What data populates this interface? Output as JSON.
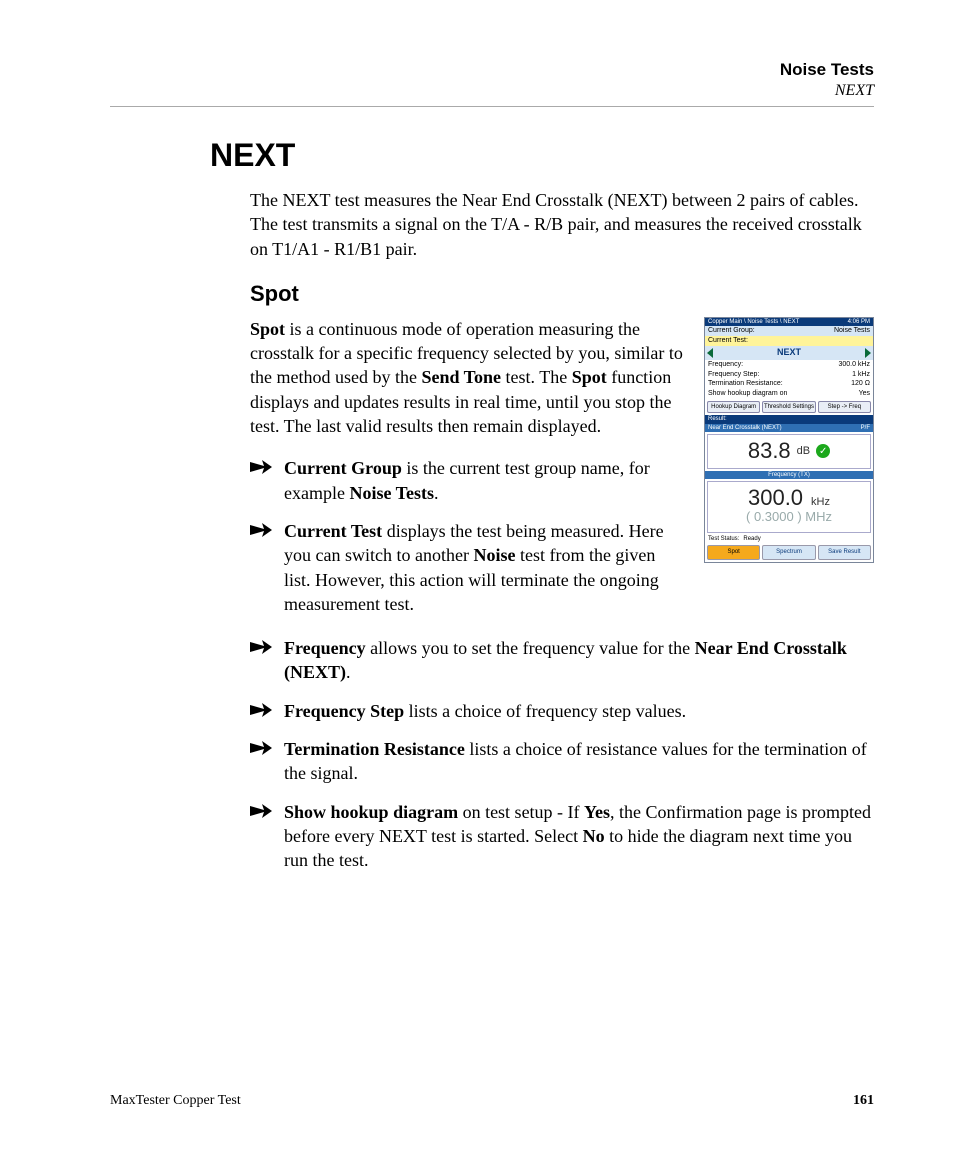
{
  "header": {
    "section": "Noise Tests",
    "subsection": "NEXT"
  },
  "h1": "NEXT",
  "intro": "The NEXT test measures the Near End Crosstalk (NEXT) between 2 pairs of cables. The test transmits a signal on the T/A - R/B pair, and measures the received crosstalk on T1/A1 - R1/B1 pair.",
  "h2": "Spot",
  "spot_para_html": "<span class='b'>Spot</span> is a continuous mode of operation measuring the crosstalk for a specific frequency selected by you, similar to the method used by the <span class='b'>Send Tone</span> test. The <span class='b'>Spot</span> function displays and updates results in real time, until you stop the test. The last valid results then remain displayed.",
  "bullets_html": [
    "<span class='b'>Current Group</span> is the current test group name, for example <span class='b'>Noise Tests</span>.",
    "<span class='b'>Current Test</span> displays the test being measured. Here you can switch to another <span class='b'>Noise</span> test from the given list. However, this action will terminate the ongoing measurement test.",
    "<span class='b'>Frequency</span> allows you to set the frequency value for the <span class='b'>Near End Crosstalk (NEXT)</span>.",
    "<span class='b'>Frequency Step</span> lists a choice of frequency step values.",
    "<span class='b'>Termination Resistance</span> lists a choice of resistance values for the termination of the signal.",
    "<span class='b'>Show hookup diagram</span> on test setup - If <span class='b'>Yes</span>, the Confirmation page is prompted before every NEXT test is started. Select <span class='b'>No</span> to hide the diagram next time you run the test."
  ],
  "device": {
    "breadcrumb": "Copper Main \\ Noise Tests \\ NEXT",
    "time": "4:06 PM",
    "current_group_label": "Current Group:",
    "current_group_value": "Noise Tests",
    "current_test_label": "Current Test:",
    "next_label": "NEXT",
    "params": [
      {
        "label": "Frequency:",
        "value": "300.0 kHz"
      },
      {
        "label": "Frequency Step:",
        "value": "1 kHz"
      },
      {
        "label": "Termination Resistance:",
        "value": "120 Ω"
      },
      {
        "label": "Show hookup diagram on",
        "value": "Yes"
      }
    ],
    "buttons": [
      "Hookup Diagram",
      "Threshold Settings",
      "Step -> Freq"
    ],
    "result_label": "Result:",
    "nec_label": "Near End Crosstalk (NEXT)",
    "pf_label": "P/F",
    "nec_value": "83.8",
    "nec_unit": "dB",
    "nec_pass": true,
    "freq_tx_label": "Frequency (TX)",
    "freq_value": "300.0",
    "freq_unit": "kHz",
    "mhz_line": "( 0.3000 ) MHz",
    "status_label": "Test Status:",
    "status_value": "Ready",
    "tabs": [
      "Spot",
      "Spectrum",
      "Save Result"
    ],
    "active_tab": 0,
    "colors": {
      "navbar_bg": "#0a3a7a",
      "panel_bg": "#d6e6f5",
      "sub_hdr_bg": "#2f6fb3",
      "sel_bg": "#fff49a",
      "active_tab_bg": "#f5a91c",
      "pass_green": "#1ca81c",
      "nav_tri": "#0a6a3a"
    }
  },
  "footer": {
    "doc": "MaxTester Copper Test",
    "page": "161"
  }
}
